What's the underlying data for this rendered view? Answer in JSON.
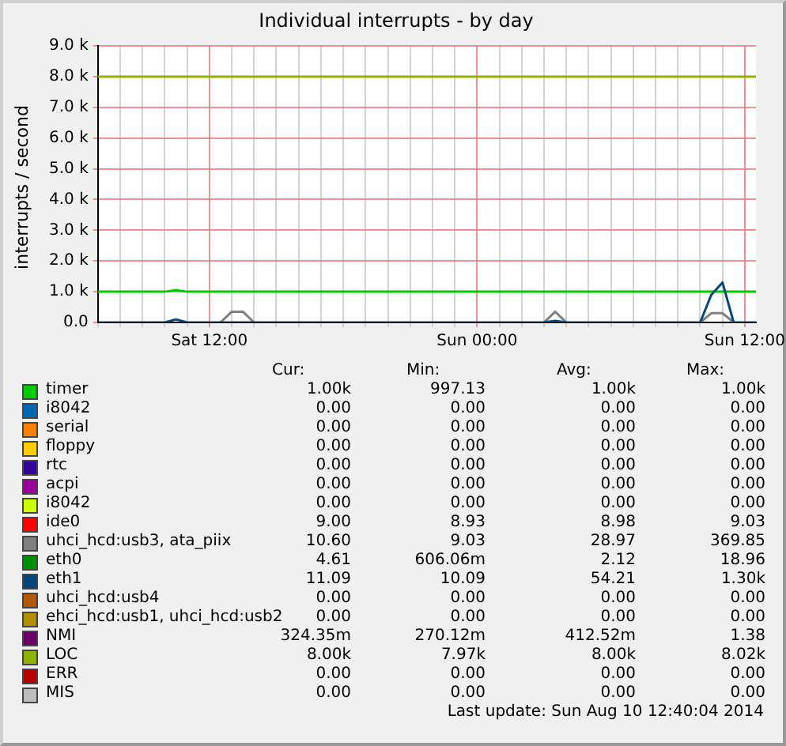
{
  "chart_data": {
    "type": "line",
    "title": "Individual interrupts - by day",
    "ylabel": "interrupts / second",
    "categories": [
      null,
      null,
      null,
      null,
      null,
      null,
      null,
      null,
      null,
      null,
      "Sat 12:00",
      null,
      null,
      null,
      null,
      null,
      null,
      null,
      null,
      null,
      null,
      null,
      null,
      null,
      null,
      null,
      null,
      null,
      null,
      null,
      null,
      null,
      null,
      null,
      "Sun 00:00",
      null,
      null,
      null,
      null,
      null,
      null,
      null,
      null,
      null,
      null,
      null,
      null,
      null,
      null,
      null,
      null,
      null,
      null,
      null,
      null,
      null,
      null,
      null,
      "Sun 12:00",
      null
    ],
    "ylim": [
      0,
      9000
    ],
    "yticks": [
      {
        "value": 0,
        "label": "0.0"
      },
      {
        "value": 1000,
        "label": "1.0 k"
      },
      {
        "value": 2000,
        "label": "2.0 k"
      },
      {
        "value": 3000,
        "label": "3.0 k"
      },
      {
        "value": 4000,
        "label": "4.0 k"
      },
      {
        "value": 5000,
        "label": "5.0 k"
      },
      {
        "value": 6000,
        "label": "6.0 k"
      },
      {
        "value": 7000,
        "label": "7.0 k"
      },
      {
        "value": 8000,
        "label": "8.0 k"
      },
      {
        "value": 9000,
        "label": "9.0 k"
      }
    ],
    "grid": true,
    "legend": "bottom",
    "marker": "none",
    "line_style": "solid",
    "series": [
      {
        "name": "timer",
        "color": "#00cc00",
        "values": [
          1000,
          1000,
          1000,
          1000,
          1000,
          1000,
          1000,
          1050,
          1000,
          1000,
          1000,
          1000,
          1000,
          1000,
          1000,
          1000,
          1000,
          1000,
          1000,
          1000,
          1000,
          1000,
          1000,
          1000,
          1000,
          1000,
          1000,
          1000,
          1000,
          1000,
          1000,
          1000,
          1000,
          1000,
          1000,
          1000,
          1000,
          1000,
          1000,
          1000,
          1000,
          1000,
          1000,
          1000,
          1000,
          1000,
          1000,
          1000,
          1000,
          1000,
          1000,
          1000,
          1000,
          1000,
          1000,
          1000,
          1000,
          1000,
          1000,
          1000
        ]
      },
      {
        "name": "i8042",
        "color": "#0066b3",
        "values": [
          null,
          null,
          null,
          null,
          null,
          null,
          null,
          null,
          null,
          null,
          null,
          null,
          null,
          null,
          null,
          null,
          null,
          null,
          null,
          null,
          null,
          null,
          null,
          null,
          null,
          null,
          null,
          null,
          null,
          null,
          null,
          null,
          null,
          null,
          null,
          null,
          null,
          null,
          null,
          null,
          null,
          null,
          null,
          null,
          null,
          null,
          null,
          null,
          null,
          null,
          null,
          null,
          null,
          null,
          null,
          null,
          null,
          null,
          null,
          null
        ]
      },
      {
        "name": "serial",
        "color": "#ff8000",
        "values": [
          null,
          null,
          null,
          null,
          null,
          null,
          null,
          null,
          null,
          null,
          null,
          null,
          null,
          null,
          null,
          null,
          null,
          null,
          null,
          null,
          null,
          null,
          null,
          null,
          null,
          null,
          null,
          null,
          null,
          null,
          null,
          null,
          null,
          null,
          null,
          null,
          null,
          null,
          null,
          null,
          null,
          null,
          null,
          null,
          null,
          null,
          null,
          null,
          null,
          null,
          null,
          null,
          null,
          null,
          null,
          null,
          null,
          null,
          null,
          null
        ]
      },
      {
        "name": "floppy",
        "color": "#ffcc00",
        "values": [
          null,
          null,
          null,
          null,
          null,
          null,
          null,
          null,
          null,
          null,
          null,
          null,
          null,
          null,
          null,
          null,
          null,
          null,
          null,
          null,
          null,
          null,
          null,
          null,
          null,
          null,
          null,
          null,
          null,
          null,
          null,
          null,
          null,
          null,
          null,
          null,
          null,
          null,
          null,
          null,
          null,
          null,
          null,
          null,
          null,
          null,
          null,
          null,
          null,
          null,
          null,
          null,
          null,
          null,
          null,
          null,
          null,
          null,
          null,
          null
        ]
      },
      {
        "name": "rtc",
        "color": "#330099",
        "values": [
          null,
          null,
          null,
          null,
          null,
          null,
          null,
          null,
          null,
          null,
          null,
          null,
          null,
          null,
          null,
          null,
          null,
          null,
          null,
          null,
          null,
          null,
          null,
          null,
          null,
          null,
          null,
          null,
          null,
          null,
          null,
          null,
          null,
          null,
          null,
          null,
          null,
          null,
          null,
          null,
          null,
          null,
          null,
          null,
          null,
          null,
          null,
          null,
          null,
          null,
          null,
          null,
          null,
          null,
          null,
          null,
          null,
          null,
          null,
          null
        ]
      },
      {
        "name": "acpi",
        "color": "#990099",
        "values": [
          null,
          null,
          null,
          null,
          null,
          null,
          null,
          null,
          null,
          null,
          null,
          null,
          null,
          null,
          null,
          null,
          null,
          null,
          null,
          null,
          null,
          null,
          null,
          null,
          null,
          null,
          null,
          null,
          null,
          null,
          null,
          null,
          null,
          null,
          null,
          null,
          null,
          null,
          null,
          null,
          null,
          null,
          null,
          null,
          null,
          null,
          null,
          null,
          null,
          null,
          null,
          null,
          null,
          null,
          null,
          null,
          null,
          null,
          null,
          null
        ]
      },
      {
        "name": "i8042",
        "color": "#ccff00",
        "values": [
          null,
          null,
          null,
          null,
          null,
          null,
          null,
          null,
          null,
          null,
          null,
          null,
          null,
          null,
          null,
          null,
          null,
          null,
          null,
          null,
          null,
          null,
          null,
          null,
          null,
          null,
          null,
          null,
          null,
          null,
          null,
          null,
          null,
          null,
          null,
          null,
          null,
          null,
          null,
          null,
          null,
          null,
          null,
          null,
          null,
          null,
          null,
          null,
          null,
          null,
          null,
          null,
          null,
          null,
          null,
          null,
          null,
          null,
          null,
          null
        ]
      },
      {
        "name": "ide0",
        "color": "#ff0000",
        "values": [
          null,
          null,
          null,
          null,
          null,
          null,
          null,
          null,
          null,
          null,
          null,
          null,
          null,
          null,
          null,
          null,
          null,
          null,
          null,
          null,
          null,
          null,
          null,
          null,
          null,
          null,
          null,
          null,
          null,
          null,
          null,
          null,
          null,
          null,
          null,
          null,
          null,
          null,
          null,
          null,
          null,
          null,
          null,
          null,
          null,
          null,
          null,
          null,
          null,
          null,
          null,
          null,
          null,
          null,
          null,
          null,
          null,
          null,
          null,
          null
        ]
      },
      {
        "name": "uhci_hcd:usb3, ata_piix",
        "color": "#808080",
        "values": [
          null,
          null,
          null,
          null,
          null,
          null,
          null,
          null,
          null,
          null,
          null,
          0,
          350,
          350,
          0,
          null,
          null,
          null,
          null,
          null,
          null,
          null,
          null,
          null,
          null,
          null,
          null,
          null,
          null,
          null,
          null,
          null,
          null,
          null,
          null,
          null,
          null,
          null,
          null,
          null,
          0,
          350,
          0,
          null,
          null,
          null,
          null,
          null,
          null,
          null,
          null,
          null,
          null,
          null,
          0,
          300,
          300,
          0,
          null,
          null
        ]
      },
      {
        "name": "eth0",
        "color": "#008f00",
        "values": [
          null,
          null,
          null,
          null,
          null,
          null,
          null,
          null,
          null,
          null,
          null,
          null,
          null,
          null,
          null,
          null,
          null,
          null,
          null,
          null,
          null,
          null,
          null,
          null,
          null,
          null,
          null,
          null,
          null,
          null,
          null,
          null,
          null,
          null,
          null,
          null,
          null,
          null,
          null,
          null,
          null,
          null,
          null,
          null,
          null,
          null,
          null,
          null,
          null,
          null,
          null,
          null,
          null,
          null,
          null,
          null,
          null,
          null,
          null,
          null
        ]
      },
      {
        "name": "eth1",
        "color": "#00487d",
        "values": [
          0,
          0,
          0,
          0,
          0,
          0,
          0,
          100,
          0,
          0,
          0,
          0,
          0,
          0,
          0,
          0,
          0,
          0,
          0,
          0,
          0,
          0,
          0,
          0,
          0,
          0,
          0,
          0,
          0,
          0,
          0,
          0,
          0,
          0,
          0,
          0,
          0,
          0,
          0,
          0,
          0,
          50,
          0,
          0,
          0,
          0,
          0,
          0,
          0,
          0,
          0,
          0,
          0,
          0,
          0,
          900,
          1300,
          0,
          0,
          0
        ]
      },
      {
        "name": "uhci_hcd:usb4",
        "color": "#b35a00",
        "values": [
          null,
          null,
          null,
          null,
          null,
          null,
          null,
          null,
          null,
          null,
          null,
          null,
          null,
          null,
          null,
          null,
          null,
          null,
          null,
          null,
          null,
          null,
          null,
          null,
          null,
          null,
          null,
          null,
          null,
          null,
          null,
          null,
          null,
          null,
          null,
          null,
          null,
          null,
          null,
          null,
          null,
          null,
          null,
          null,
          null,
          null,
          null,
          null,
          null,
          null,
          null,
          null,
          null,
          null,
          null,
          null,
          null,
          null,
          null,
          null
        ]
      },
      {
        "name": "ehci_hcd:usb1, uhci_hcd:usb2",
        "color": "#b38f00",
        "values": [
          null,
          null,
          null,
          null,
          null,
          null,
          null,
          null,
          null,
          null,
          null,
          null,
          null,
          null,
          null,
          null,
          null,
          null,
          null,
          null,
          null,
          null,
          null,
          null,
          null,
          null,
          null,
          null,
          null,
          null,
          null,
          null,
          null,
          null,
          null,
          null,
          null,
          null,
          null,
          null,
          null,
          null,
          null,
          null,
          null,
          null,
          null,
          null,
          null,
          null,
          null,
          null,
          null,
          null,
          null,
          null,
          null,
          null,
          null,
          null
        ]
      },
      {
        "name": "NMI",
        "color": "#6b006b",
        "values": [
          null,
          null,
          null,
          null,
          null,
          null,
          null,
          null,
          null,
          null,
          null,
          null,
          null,
          null,
          null,
          null,
          null,
          null,
          null,
          null,
          null,
          null,
          null,
          null,
          null,
          null,
          null,
          null,
          null,
          null,
          null,
          null,
          null,
          null,
          null,
          null,
          null,
          null,
          null,
          null,
          null,
          null,
          null,
          null,
          null,
          null,
          null,
          null,
          null,
          null,
          null,
          null,
          null,
          null,
          null,
          null,
          null,
          null,
          null,
          null
        ]
      },
      {
        "name": "LOC",
        "color": "#8fb300",
        "values": [
          8000,
          8000,
          8000,
          8000,
          8000,
          8000,
          8000,
          8000,
          8000,
          8000,
          8000,
          8000,
          8000,
          8000,
          8000,
          8000,
          8000,
          8000,
          8000,
          8000,
          8000,
          8000,
          8000,
          8000,
          8000,
          8000,
          8000,
          8000,
          8000,
          8000,
          8000,
          8000,
          8000,
          8000,
          8000,
          8000,
          8000,
          8000,
          8000,
          8000,
          8000,
          8000,
          8000,
          8000,
          8000,
          8000,
          8000,
          8000,
          8000,
          8000,
          8000,
          8000,
          8000,
          8000,
          8000,
          8000,
          8000,
          8000,
          8000,
          8000
        ]
      },
      {
        "name": "ERR",
        "color": "#b30000",
        "values": [
          null,
          null,
          null,
          null,
          null,
          null,
          null,
          null,
          null,
          null,
          null,
          null,
          null,
          null,
          null,
          null,
          null,
          null,
          null,
          null,
          null,
          null,
          null,
          null,
          null,
          null,
          null,
          null,
          null,
          null,
          null,
          null,
          null,
          null,
          null,
          null,
          null,
          null,
          null,
          null,
          null,
          null,
          null,
          null,
          null,
          null,
          null,
          null,
          null,
          null,
          null,
          null,
          null,
          null,
          null,
          null,
          null,
          null,
          null,
          null
        ]
      },
      {
        "name": "MIS",
        "color": "#bebebe",
        "values": [
          null,
          null,
          null,
          null,
          null,
          null,
          null,
          null,
          null,
          null,
          null,
          null,
          null,
          null,
          null,
          null,
          null,
          null,
          null,
          null,
          null,
          null,
          null,
          null,
          null,
          null,
          null,
          null,
          null,
          null,
          null,
          null,
          null,
          null,
          null,
          null,
          null,
          null,
          null,
          null,
          null,
          null,
          null,
          null,
          null,
          null,
          null,
          null,
          null,
          null,
          null,
          null,
          null,
          null,
          null,
          null,
          null,
          null,
          null,
          null
        ]
      }
    ],
    "annotations": [
      "Cur:",
      "Min:",
      "Avg:",
      "Max:",
      "1.00k",
      "997.13",
      "1.00k",
      "1.00k",
      "0.00",
      "0.00",
      "0.00",
      "0.00",
      "0.00",
      "0.00",
      "0.00",
      "0.00",
      "0.00",
      "0.00",
      "0.00",
      "0.00",
      "0.00",
      "0.00",
      "0.00",
      "0.00",
      "0.00",
      "0.00",
      "0.00",
      "0.00",
      "0.00",
      "0.00",
      "0.00",
      "0.00",
      "9.00",
      "8.93",
      "8.98",
      "9.03",
      "10.60",
      "9.03",
      "28.97",
      "369.85",
      "4.61",
      "606.06m",
      "2.12",
      "18.96",
      "11.09",
      "10.09",
      "54.21",
      "1.30k",
      "0.00",
      "0.00",
      "0.00",
      "0.00",
      "0.00",
      "0.00",
      "0.00",
      "0.00",
      "324.35m",
      "270.12m",
      "412.52m",
      "1.38",
      "8.00k",
      "7.97k",
      "8.00k",
      "8.02k",
      "0.00",
      "0.00",
      "0.00",
      "0.00",
      "0.00",
      "0.00",
      "0.00",
      "0.00",
      "Last update: Sun Aug 10 12:40:04 2014"
    ]
  }
}
